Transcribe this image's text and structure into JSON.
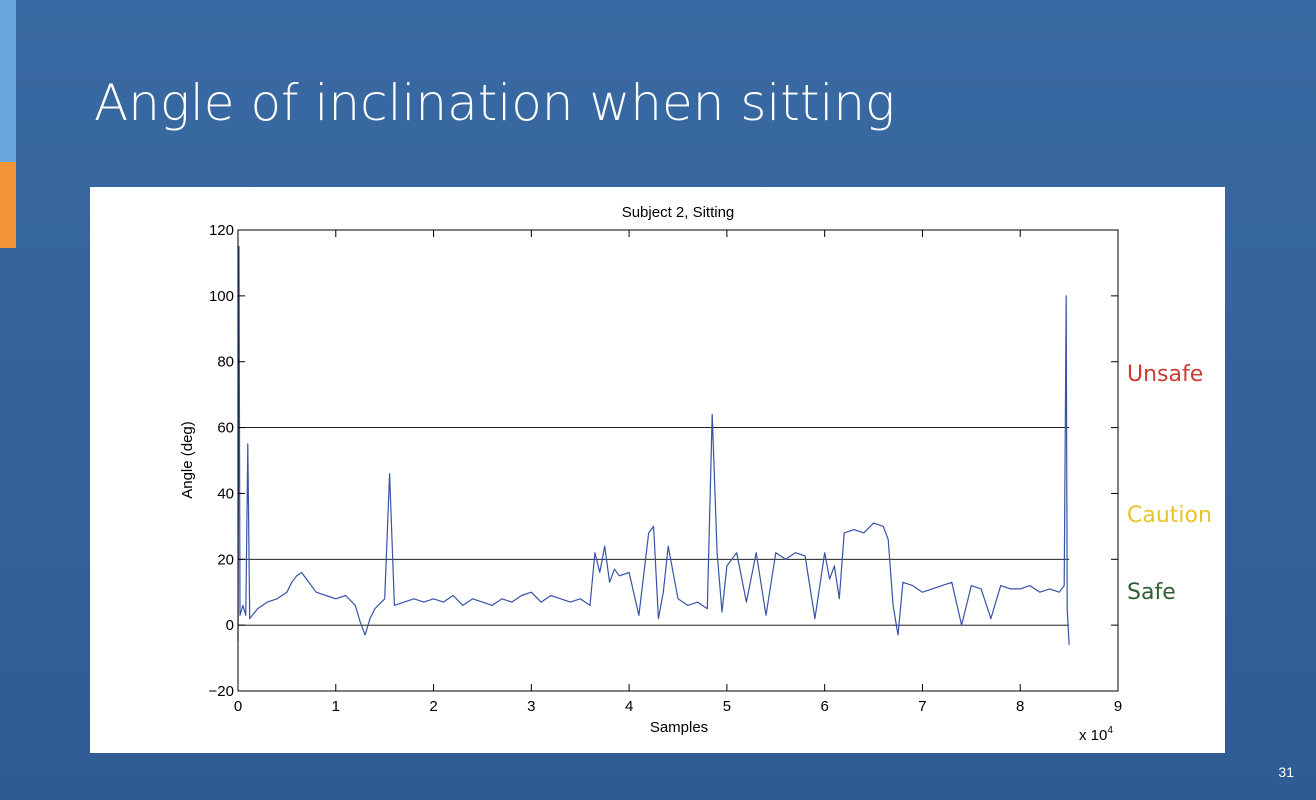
{
  "slide": {
    "title": "Angle of inclination when sitting",
    "page_number": "31",
    "colors": {
      "background": "#2f5d95",
      "accent_top": "#6aa6de",
      "accent_mid": "#f39536"
    }
  },
  "zones": [
    {
      "label": "Unsafe",
      "color": "#cc3a32"
    },
    {
      "label": "Caution",
      "color": "#e8c42a"
    },
    {
      "label": "Safe",
      "color": "#2f5f33"
    }
  ],
  "chart_data": {
    "type": "line",
    "title": "Subject 2, Sitting",
    "xlabel": "Samples",
    "ylabel": "Angle (deg)",
    "x_multiplier": "x 10^4",
    "xlim": [
      0,
      9
    ],
    "ylim": [
      -20,
      120
    ],
    "xticks": [
      0,
      1,
      2,
      3,
      4,
      5,
      6,
      7,
      8,
      9
    ],
    "yticks": [
      -20,
      0,
      20,
      40,
      60,
      80,
      100,
      120
    ],
    "ytick_labels": [
      "−20",
      "0",
      "20",
      "40",
      "60",
      "80",
      "100",
      "120"
    ],
    "reference_lines": [
      0,
      20,
      60
    ],
    "reference_line_end_x": 8.5,
    "series": [
      {
        "color": "#3853a6",
        "x": [
          0,
          0.01,
          0.02,
          0.05,
          0.08,
          0.1,
          0.12,
          0.2,
          0.3,
          0.4,
          0.5,
          0.55,
          0.6,
          0.65,
          0.7,
          0.8,
          0.9,
          1.0,
          1.1,
          1.2,
          1.25,
          1.3,
          1.35,
          1.4,
          1.5,
          1.55,
          1.6,
          1.7,
          1.8,
          1.9,
          2.0,
          2.1,
          2.2,
          2.3,
          2.4,
          2.5,
          2.6,
          2.7,
          2.8,
          2.9,
          3.0,
          3.1,
          3.2,
          3.3,
          3.4,
          3.5,
          3.6,
          3.65,
          3.7,
          3.75,
          3.8,
          3.85,
          3.9,
          4.0,
          4.1,
          4.2,
          4.25,
          4.3,
          4.35,
          4.4,
          4.5,
          4.55,
          4.6,
          4.7,
          4.8,
          4.85,
          4.9,
          4.95,
          5.0,
          5.1,
          5.2,
          5.3,
          5.4,
          5.5,
          5.6,
          5.7,
          5.8,
          5.9,
          6.0,
          6.05,
          6.1,
          6.15,
          6.2,
          6.3,
          6.4,
          6.5,
          6.6,
          6.65,
          6.7,
          6.75,
          6.8,
          6.9,
          7.0,
          7.1,
          7.2,
          7.3,
          7.4,
          7.5,
          7.6,
          7.7,
          7.8,
          7.9,
          8.0,
          8.1,
          8.2,
          8.3,
          8.4,
          8.45,
          8.47,
          8.48,
          8.5
        ],
        "y": [
          -5,
          115,
          3,
          6,
          3,
          55,
          2,
          5,
          7,
          8,
          10,
          13,
          15,
          16,
          14,
          10,
          9,
          8,
          9,
          6,
          1,
          -3,
          2,
          5,
          8,
          46,
          6,
          7,
          8,
          7,
          8,
          7,
          9,
          6,
          8,
          7,
          6,
          8,
          7,
          9,
          10,
          7,
          9,
          8,
          7,
          8,
          6,
          22,
          16,
          24,
          13,
          17,
          15,
          16,
          3,
          28,
          30,
          2,
          10,
          24,
          8,
          7,
          6,
          7,
          5,
          64,
          22,
          4,
          18,
          22,
          7,
          22,
          3,
          22,
          20,
          22,
          21,
          2,
          22,
          14,
          18,
          8,
          28,
          29,
          28,
          31,
          30,
          26,
          6,
          -3,
          13,
          12,
          10,
          11,
          12,
          13,
          0,
          12,
          11,
          2,
          12,
          11,
          11,
          12,
          10,
          11,
          10,
          12,
          100,
          5,
          -6
        ]
      }
    ]
  }
}
